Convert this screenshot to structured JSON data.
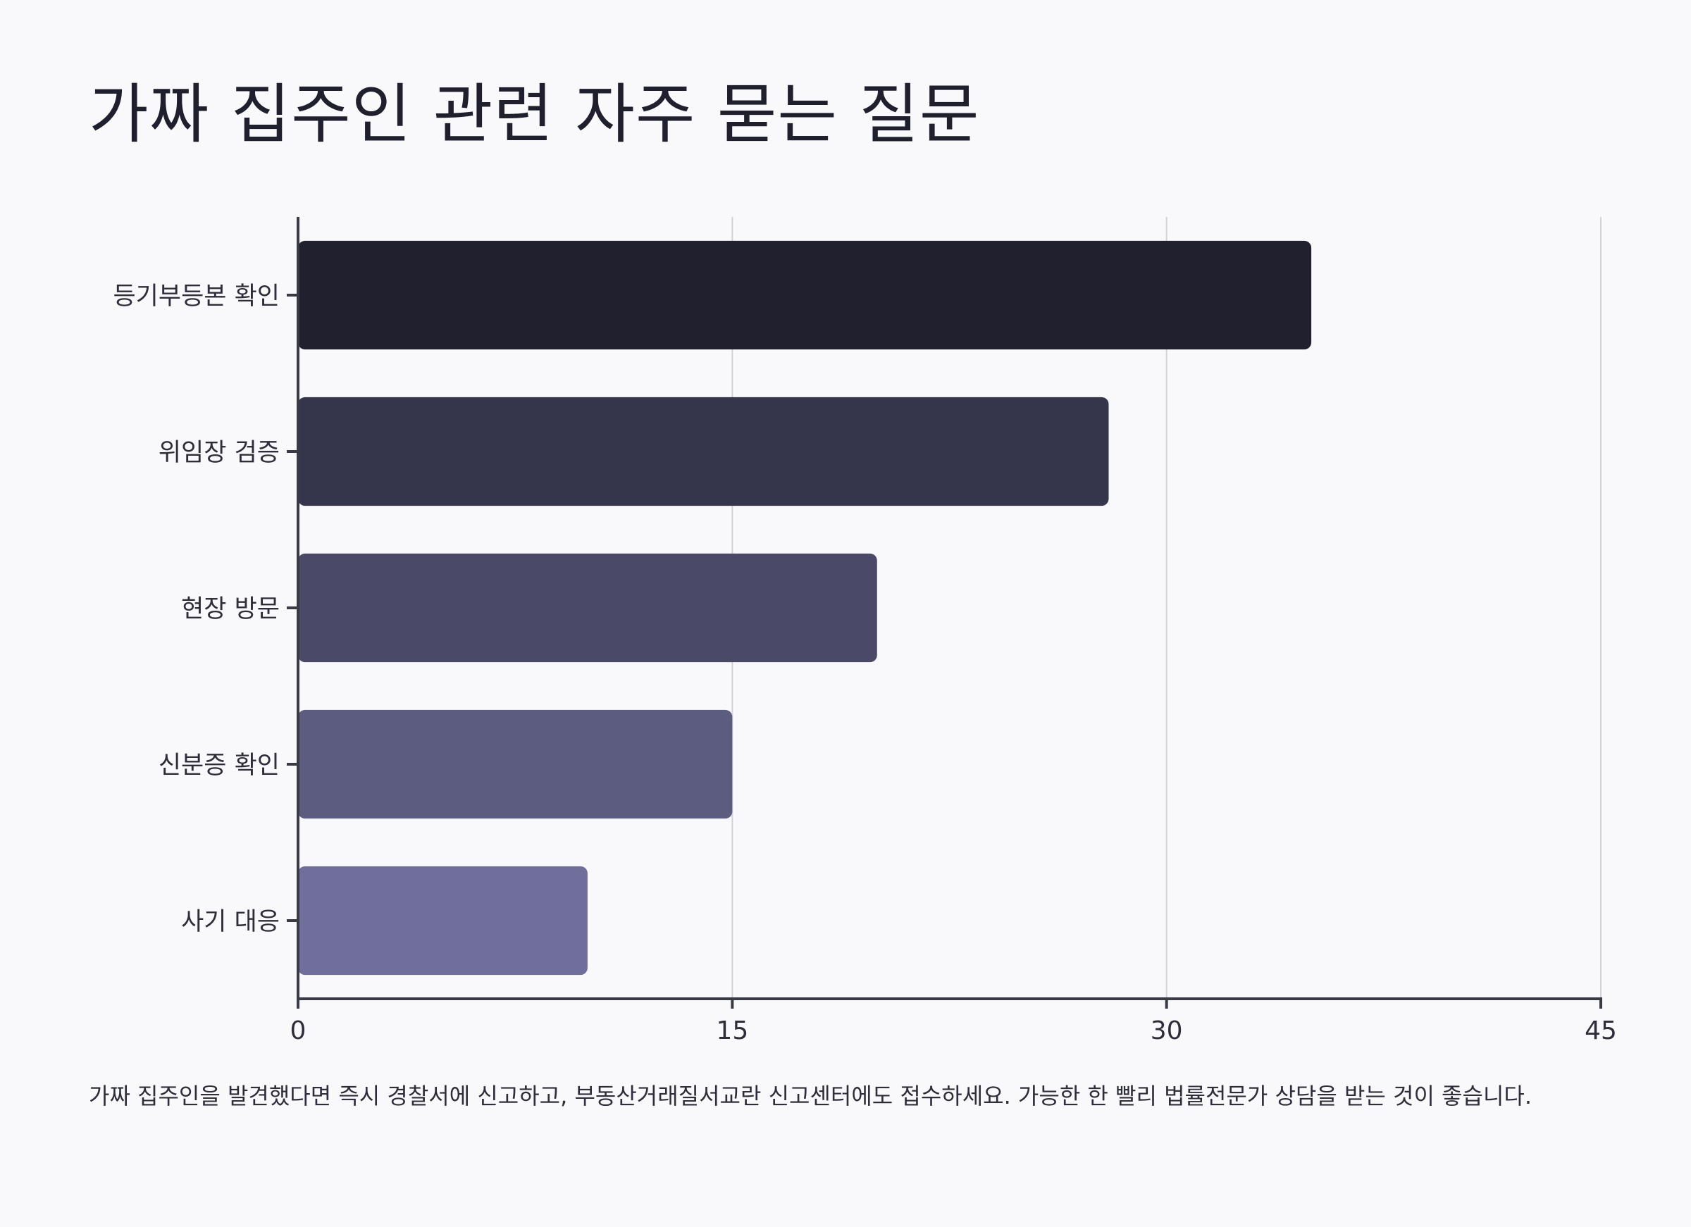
{
  "title": "가짜 집주인 관련 자주 묻는 질문",
  "footnote": "가짜 집주인을 발견했다면 즉시 경찰서에 신고하고, 부동산거래질서교란 신고센터에도 접수하세요. 가능한 한 빨리 법률전문가 상담을 받는 것이 좋습니다.",
  "chart_data": {
    "type": "bar",
    "orientation": "horizontal",
    "title": "가짜 집주인 관련 자주 묻는 질문",
    "xlabel": "",
    "ylabel": "",
    "categories": [
      "등기부등본 확인",
      "위임장 검증",
      "현장 방문",
      "신분증 확인",
      "사기 대응"
    ],
    "values": [
      35,
      28,
      20,
      15,
      10
    ],
    "xlim": [
      0,
      45
    ],
    "xticks": [
      0,
      15,
      30,
      45
    ],
    "grid": true,
    "legend": "none",
    "colors": [
      "#20202e",
      "#35354c",
      "#4a4a68",
      "#5c5b80",
      "#706f9c"
    ]
  }
}
